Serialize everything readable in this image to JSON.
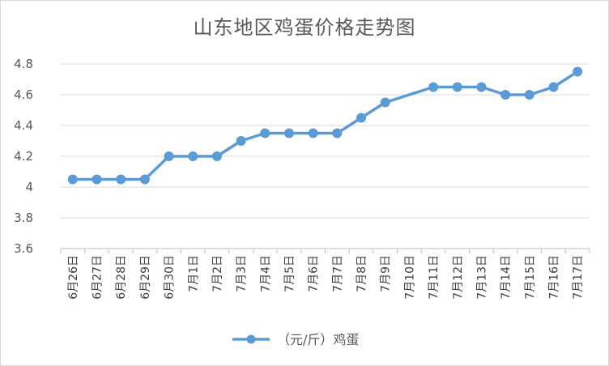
{
  "chart_data": {
    "type": "line",
    "title": "山东地区鸡蛋价格走势图",
    "categories": [
      "6月26日",
      "6月27日",
      "6月28日",
      "6月29日",
      "6月30日",
      "7月1日",
      "7月2日",
      "7月3日",
      "7月4日",
      "7月5日",
      "7月6日",
      "7月7日",
      "7月8日",
      "7月9日",
      "7月10日",
      "7月11日",
      "7月12日",
      "7月13日",
      "7月14日",
      "7月15日",
      "7月16日",
      "7月17日"
    ],
    "series": [
      {
        "name": "（元/斤）鸡蛋",
        "color": "#5b9bd5",
        "values": [
          4.05,
          4.05,
          4.05,
          4.05,
          4.2,
          4.2,
          4.2,
          4.3,
          4.35,
          4.35,
          4.35,
          4.35,
          4.45,
          4.55,
          null,
          4.65,
          4.65,
          4.65,
          4.6,
          4.6,
          4.65,
          4.75
        ]
      }
    ],
    "ylim": [
      3.6,
      4.8
    ],
    "yticks": [
      "3.6",
      "3.8",
      "4",
      "4.2",
      "4.4",
      "4.6",
      "4.8"
    ],
    "grid": true,
    "legend": "bottom"
  }
}
